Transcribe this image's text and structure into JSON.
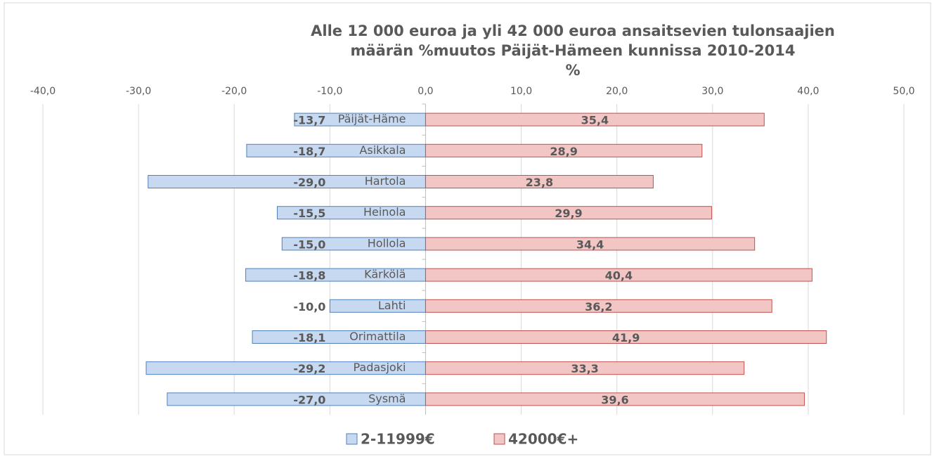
{
  "chart_data": {
    "type": "bar",
    "orientation": "horizontal",
    "title": [
      "Alle 12 000 euroa ja yli 42 000 euroa ansaitsevien tulonsaajien",
      "määrän %muutos Päijät-Hämeen kunnissa 2010-2014",
      "%"
    ],
    "categories": [
      "Päijät-Häme",
      "Asikkala",
      "Hartola",
      "Heinola",
      "Hollola",
      "Kärkölä",
      "Lahti",
      "Orimattila",
      "Padasjoki",
      "Sysmä"
    ],
    "series": [
      {
        "name": "2-11999€",
        "color": "#c6d9f1",
        "edge": "#4f81bd",
        "values": [
          -13.7,
          -18.7,
          -29.0,
          -15.5,
          -15.0,
          -18.8,
          -10.0,
          -18.1,
          -29.2,
          -27.0
        ],
        "value_labels": [
          "-13,7",
          "-18,7",
          "-29,0",
          "-15,5",
          "-15,0",
          "-18,8",
          "-10,0",
          "-18,1",
          "-29,2",
          "-27,0"
        ]
      },
      {
        "name": "42000€+",
        "color": "#f2c6c5",
        "edge": "#c0504d",
        "values": [
          35.4,
          28.9,
          23.8,
          29.9,
          34.4,
          40.4,
          36.2,
          41.9,
          33.3,
          39.6
        ],
        "value_labels": [
          "35,4",
          "28,9",
          "23,8",
          "29,9",
          "34,4",
          "40,4",
          "36,2",
          "41,9",
          "33,3",
          "39,6"
        ]
      }
    ],
    "xlim": [
      -40,
      50
    ],
    "xticks": [
      {
        "value": -40,
        "label": "-40,0"
      },
      {
        "value": -30,
        "label": "-30,0"
      },
      {
        "value": -20,
        "label": "-20,0"
      },
      {
        "value": -10,
        "label": "-10,0"
      },
      {
        "value": 0,
        "label": "0,0"
      },
      {
        "value": 10,
        "label": "10,0"
      },
      {
        "value": 20,
        "label": "20,0"
      },
      {
        "value": 30,
        "label": "30,0"
      },
      {
        "value": 40,
        "label": "40,0"
      },
      {
        "value": 50,
        "label": "50,0"
      }
    ],
    "grid": true,
    "legend": "bottom"
  }
}
